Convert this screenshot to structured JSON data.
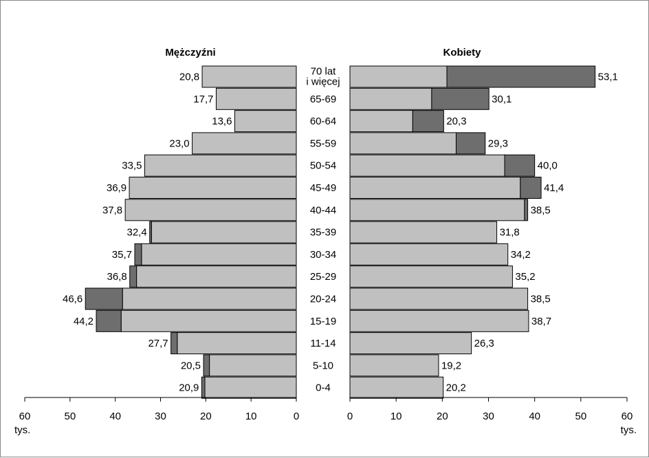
{
  "chart_data": {
    "type": "bar",
    "subtype": "population-pyramid",
    "unit_label_left": "tys.",
    "unit_label_right": "tys.",
    "categories": [
      "70 lat\ni więcej",
      "65-69",
      "60-64",
      "55-59",
      "50-54",
      "45-49",
      "40-44",
      "35-39",
      "30-34",
      "25-29",
      "20-24",
      "15-19",
      "11-14",
      "5-10",
      "0-4"
    ],
    "axis_ticks": [
      0,
      10,
      20,
      30,
      40,
      50,
      60
    ],
    "xlim": [
      0,
      60
    ],
    "panels": [
      {
        "title": "Mężczyźni",
        "side": "left",
        "series": [
          {
            "values": [
              20.8,
              17.7,
              13.6,
              23.0,
              33.5,
              36.9,
              37.8,
              32.0,
              34.2,
              35.3,
              38.4,
              38.7,
              26.3,
              19.2,
              20.2
            ]
          },
          {
            "values": [
              0,
              0,
              0,
              0,
              0,
              0,
              0,
              0.4,
              1.5,
              1.5,
              8.2,
              5.5,
              1.4,
              1.3,
              0.7
            ]
          }
        ],
        "totals": [
          20.8,
          17.7,
          13.6,
          23.0,
          33.5,
          36.9,
          37.8,
          32.4,
          35.7,
          36.8,
          46.6,
          44.2,
          27.7,
          20.5,
          20.9
        ],
        "labels": [
          "20,8",
          "17,7",
          "13,6",
          "23,0",
          "33,5",
          "36,9",
          "37,8",
          "32,4",
          "35,7",
          "36,8",
          "46,6",
          "44,2",
          "27,7",
          "20,5",
          "20,9"
        ]
      },
      {
        "title": "Kobiety",
        "side": "right",
        "series": [
          {
            "values": [
              21.0,
              17.7,
              13.6,
              23.0,
              33.5,
              36.9,
              37.8,
              31.8,
              34.2,
              35.2,
              38.5,
              38.7,
              26.3,
              19.2,
              20.2
            ]
          },
          {
            "values": [
              32.1,
              12.4,
              6.7,
              6.3,
              6.5,
              4.5,
              0.7,
              0,
              0,
              0,
              0,
              0,
              0,
              0,
              0
            ]
          }
        ],
        "totals": [
          53.1,
          30.1,
          20.3,
          29.3,
          40.0,
          41.4,
          38.5,
          31.8,
          34.2,
          35.2,
          38.5,
          38.7,
          26.3,
          19.2,
          20.2
        ],
        "labels": [
          "53,1",
          "30,1",
          "20,3",
          "29,3",
          "40,0",
          "41,4",
          "38,5",
          "31,8",
          "34,2",
          "35,2",
          "38,5",
          "38,7",
          "26,3",
          "19,2",
          "20,2"
        ]
      }
    ],
    "colors": {
      "base": "#c0c0c0",
      "excess": "#6e6e6e",
      "stroke": "#000000"
    },
    "grid": false,
    "legend": "none"
  }
}
